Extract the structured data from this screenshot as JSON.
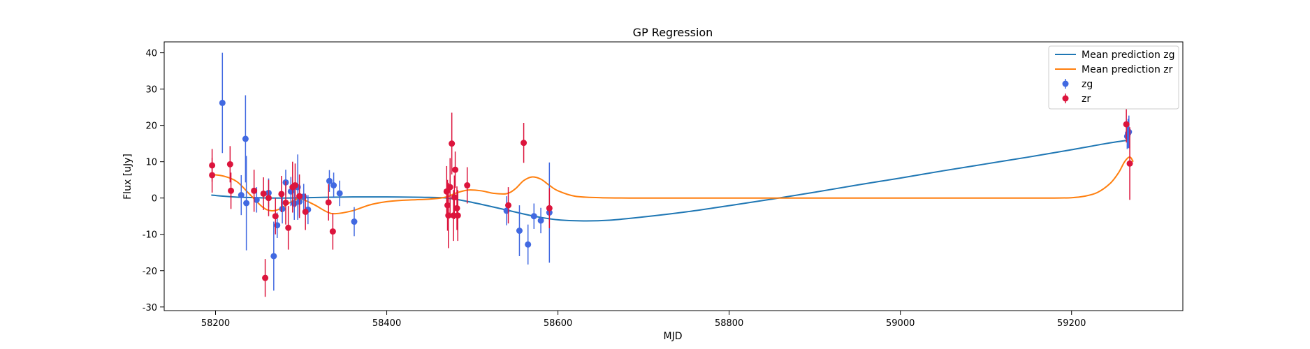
{
  "chart_data": {
    "type": "scatter",
    "title": "GP Regression",
    "xlabel": "MJD",
    "ylabel": "Flux [uJy]",
    "xlim": [
      58140,
      59330
    ],
    "ylim": [
      -31,
      43
    ],
    "xticks": [
      58200,
      58400,
      58600,
      58800,
      59000,
      59200
    ],
    "yticks": [
      -30,
      -20,
      -10,
      0,
      10,
      20,
      30,
      40
    ],
    "grid": false,
    "legend_position": "top-right",
    "lines": [
      {
        "name": "Mean prediction zg",
        "color": "#1f77b4",
        "x": [
          58195,
          58230,
          58280,
          58330,
          58360,
          58400,
          58440,
          58470,
          58500,
          58540,
          58570,
          58600,
          58630,
          58660,
          58700,
          58750,
          58800,
          58850,
          58900,
          58950,
          59000,
          59050,
          59100,
          59150,
          59200,
          59240,
          59268
        ],
        "y": [
          0.8,
          0.2,
          0.0,
          0.2,
          0.3,
          0.3,
          0.2,
          0.0,
          -1.2,
          -3.3,
          -4.9,
          -6.0,
          -6.3,
          -6.1,
          -5.2,
          -3.8,
          -2.1,
          -0.3,
          1.6,
          3.6,
          5.5,
          7.5,
          9.4,
          11.3,
          13.3,
          15.0,
          16.0
        ]
      },
      {
        "name": "Mean prediction zr",
        "color": "#ff7f0e",
        "x": [
          58195,
          58210,
          58225,
          58240,
          58255,
          58265,
          58275,
          58290,
          58300,
          58315,
          58330,
          58340,
          58360,
          58380,
          58400,
          58420,
          58450,
          58470,
          58480,
          58495,
          58510,
          58525,
          58540,
          58550,
          58560,
          58570,
          58580,
          58590,
          58600,
          58620,
          58650,
          58700,
          58800,
          58900,
          59000,
          59100,
          59180,
          59200,
          59215,
          59230,
          59245,
          59255,
          59262,
          59268,
          59272
        ],
        "y": [
          6.5,
          6.0,
          4.5,
          1.0,
          -2.5,
          -3.5,
          -3.0,
          -0.8,
          -0.3,
          -1.8,
          -3.8,
          -4.3,
          -3.5,
          -1.9,
          -1.0,
          -0.6,
          -0.3,
          0.3,
          1.3,
          2.2,
          2.0,
          1.3,
          1.2,
          2.5,
          4.8,
          5.8,
          5.2,
          3.5,
          2.0,
          0.5,
          0.1,
          0.0,
          0.0,
          0.0,
          0.0,
          0.0,
          0.0,
          0.1,
          0.5,
          1.5,
          4.0,
          7.0,
          10.0,
          11.3,
          10.0
        ]
      }
    ],
    "series": [
      {
        "name": "zg",
        "color": "#4169e1",
        "points": [
          {
            "x": 58208,
            "y": 26.2,
            "err": 13.8
          },
          {
            "x": 58230,
            "y": 0.8,
            "err": 5.5
          },
          {
            "x": 58235,
            "y": 16.3,
            "err": 12.0
          },
          {
            "x": 58236,
            "y": -1.4,
            "err": 13.0
          },
          {
            "x": 58248,
            "y": -0.5,
            "err": 3.5
          },
          {
            "x": 58262,
            "y": 1.4,
            "err": 4.0
          },
          {
            "x": 58268,
            "y": -16.0,
            "err": 9.5
          },
          {
            "x": 58272,
            "y": -7.5,
            "err": 3.5
          },
          {
            "x": 58278,
            "y": -3.0,
            "err": 4.0
          },
          {
            "x": 58282,
            "y": 4.3,
            "err": 3.5
          },
          {
            "x": 58288,
            "y": 1.8,
            "err": 4.0
          },
          {
            "x": 58292,
            "y": -1.5,
            "err": 4.5
          },
          {
            "x": 58296,
            "y": 3.0,
            "err": 9.0
          },
          {
            "x": 58298,
            "y": -1.0,
            "err": 4.0
          },
          {
            "x": 58303,
            "y": 0.4,
            "err": 3.5
          },
          {
            "x": 58308,
            "y": -3.2,
            "err": 4.0
          },
          {
            "x": 58333,
            "y": 4.7,
            "err": 3.0
          },
          {
            "x": 58338,
            "y": 3.5,
            "err": 3.5
          },
          {
            "x": 58345,
            "y": 1.3,
            "err": 3.5
          },
          {
            "x": 58362,
            "y": -6.5,
            "err": 4.0
          },
          {
            "x": 58540,
            "y": -3.5,
            "err": 4.0
          },
          {
            "x": 58555,
            "y": -9.0,
            "err": 7.0
          },
          {
            "x": 58565,
            "y": -12.8,
            "err": 5.5
          },
          {
            "x": 58572,
            "y": -5.0,
            "err": 3.5
          },
          {
            "x": 58580,
            "y": -6.2,
            "err": 3.5
          },
          {
            "x": 58590,
            "y": -4.0,
            "err": 13.8
          },
          {
            "x": 59265,
            "y": 17.0,
            "err": 3.5
          },
          {
            "x": 59266,
            "y": 17.8,
            "err": 4.0
          },
          {
            "x": 59267,
            "y": 18.2,
            "err": 4.5
          }
        ]
      },
      {
        "name": "zr",
        "color": "#dc143c",
        "points": [
          {
            "x": 58196,
            "y": 9.0,
            "err": 4.5
          },
          {
            "x": 58196,
            "y": 6.3,
            "err": 4.8
          },
          {
            "x": 58217,
            "y": 9.3,
            "err": 5.0
          },
          {
            "x": 58218,
            "y": 2.0,
            "err": 5.0
          },
          {
            "x": 58245,
            "y": 2.0,
            "err": 5.8
          },
          {
            "x": 58256,
            "y": 1.2,
            "err": 4.5
          },
          {
            "x": 58258,
            "y": -22.0,
            "err": 5.2
          },
          {
            "x": 58262,
            "y": 0.0,
            "err": 5.0
          },
          {
            "x": 58270,
            "y": -5.0,
            "err": 5.0
          },
          {
            "x": 58277,
            "y": 1.1,
            "err": 5.0
          },
          {
            "x": 58282,
            "y": -1.3,
            "err": 6.0
          },
          {
            "x": 58285,
            "y": -8.2,
            "err": 6.0
          },
          {
            "x": 58290,
            "y": 3.0,
            "err": 7.0
          },
          {
            "x": 58293,
            "y": 3.5,
            "err": 6.0
          },
          {
            "x": 58298,
            "y": 0.5,
            "err": 6.0
          },
          {
            "x": 58305,
            "y": -3.8,
            "err": 5.0
          },
          {
            "x": 58332,
            "y": -1.2,
            "err": 5.0
          },
          {
            "x": 58337,
            "y": -9.2,
            "err": 5.0
          },
          {
            "x": 58470,
            "y": 1.8,
            "err": 7.0
          },
          {
            "x": 58471,
            "y": -2.0,
            "err": 7.0
          },
          {
            "x": 58472,
            "y": -4.8,
            "err": 9.0
          },
          {
            "x": 58474,
            "y": 3.0,
            "err": 8.0
          },
          {
            "x": 58476,
            "y": 15.0,
            "err": 8.5
          },
          {
            "x": 58478,
            "y": -4.8,
            "err": 7.0
          },
          {
            "x": 58479,
            "y": 0.2,
            "err": 6.0
          },
          {
            "x": 58480,
            "y": 7.8,
            "err": 5.0
          },
          {
            "x": 58482,
            "y": -2.8,
            "err": 6.0
          },
          {
            "x": 58483,
            "y": -4.8,
            "err": 7.0
          },
          {
            "x": 58494,
            "y": 3.5,
            "err": 5.0
          },
          {
            "x": 58542,
            "y": -2.0,
            "err": 5.0
          },
          {
            "x": 58560,
            "y": 15.2,
            "err": 5.5
          },
          {
            "x": 58590,
            "y": -2.8,
            "err": 5.5
          },
          {
            "x": 59264,
            "y": 20.3,
            "err": 5.0
          },
          {
            "x": 59268,
            "y": 9.5,
            "err": 10.0
          }
        ]
      }
    ]
  }
}
